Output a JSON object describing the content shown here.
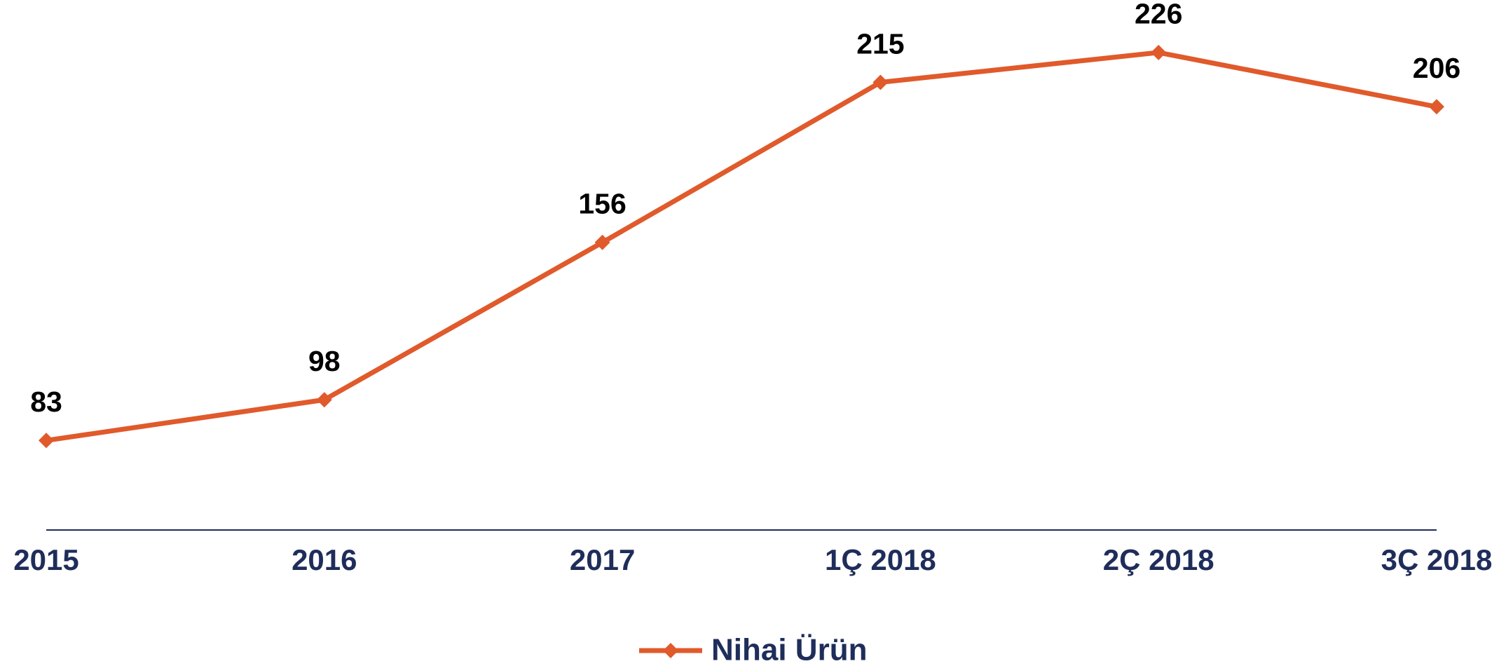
{
  "chart_data": {
    "type": "line",
    "categories": [
      "2015",
      "2016",
      "2017",
      "1Ç 2018",
      "2Ç 2018",
      "3Ç 2018"
    ],
    "series": [
      {
        "name": "Nihai Ürün",
        "color": "#e05a2b",
        "values": [
          83,
          98,
          156,
          215,
          226,
          206
        ]
      }
    ],
    "ylim": [
      50,
      250
    ],
    "axis_color": "#1f2d5a",
    "legend": "bottom"
  }
}
